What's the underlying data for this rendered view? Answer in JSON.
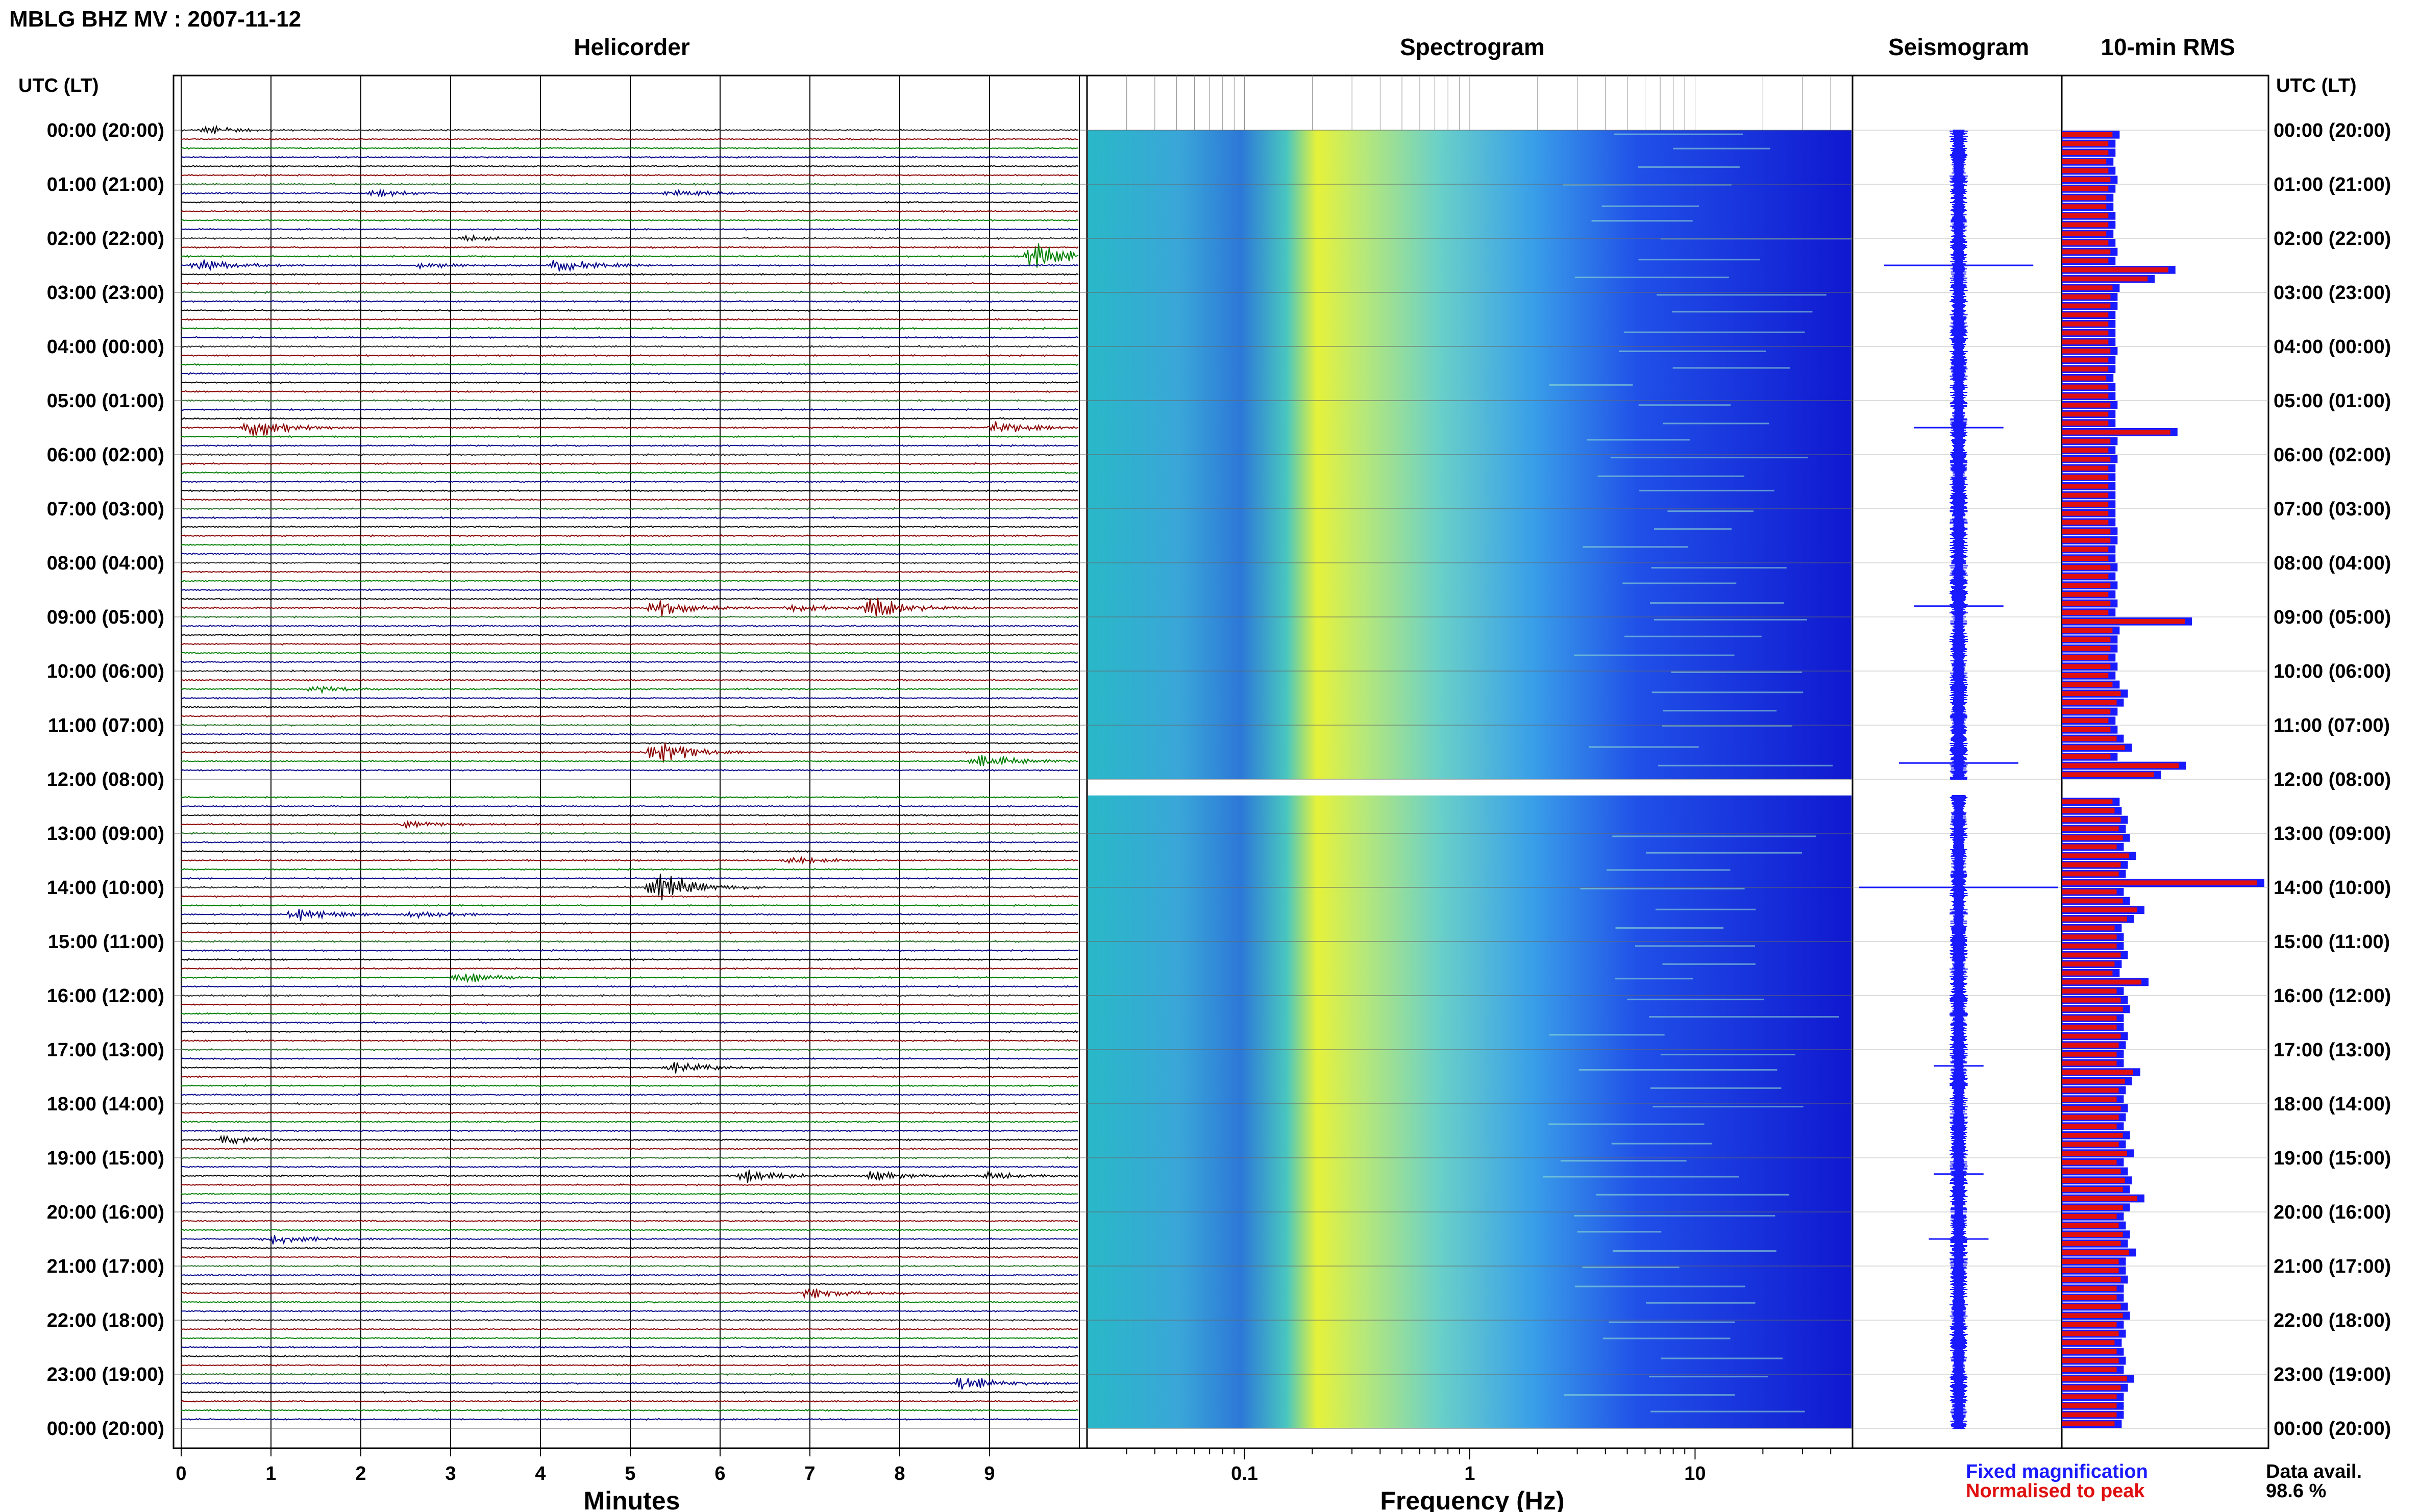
{
  "title": "MBLG BHZ MV : 2007-11-12",
  "panels": {
    "helicorder": "Helicorder",
    "spectrogram": "Spectrogram",
    "seismogram": "Seismogram",
    "rms": "10-min RMS"
  },
  "time_axis_header": "UTC (LT)",
  "time_labels": [
    "00:00 (20:00)",
    "01:00 (21:00)",
    "02:00 (22:00)",
    "03:00 (23:00)",
    "04:00 (00:00)",
    "05:00 (01:00)",
    "06:00 (02:00)",
    "07:00 (03:00)",
    "08:00 (04:00)",
    "09:00 (05:00)",
    "10:00 (06:00)",
    "11:00 (07:00)",
    "12:00 (08:00)",
    "13:00 (09:00)",
    "14:00 (10:00)",
    "15:00 (11:00)",
    "16:00 (12:00)",
    "17:00 (13:00)",
    "18:00 (14:00)",
    "19:00 (15:00)",
    "20:00 (16:00)",
    "21:00 (17:00)",
    "22:00 (18:00)",
    "23:00 (19:00)",
    "00:00 (20:00)"
  ],
  "minutes_ticks": [
    "0",
    "1",
    "2",
    "3",
    "4",
    "5",
    "6",
    "7",
    "8",
    "9"
  ],
  "minutes_label": "Minutes",
  "freq_ticks": [
    "0.1",
    "1",
    "10"
  ],
  "freq_label": "Frequency (Hz)",
  "legend": {
    "fixed": "Fixed magnification",
    "normalised": "Normalised to peak",
    "fixed_color": "#1a1aff",
    "normalised_color": "#e01010"
  },
  "data_avail_label": "Data avail.",
  "data_avail_value": "98.6 %",
  "colors": {
    "trace_cycle": [
      "#000000",
      "#8b0000",
      "#008000",
      "#00008b"
    ],
    "rms_fixed": "#1a1aff",
    "rms_norm": "#e01010"
  },
  "chart_data": {
    "type": "heatmap",
    "helicorder": {
      "xlabel": "Minutes",
      "xlim": [
        0,
        10
      ],
      "rows_per_hour": 6,
      "events": [
        {
          "hour": 0.0,
          "minute": 0.3,
          "amp": 0.6
        },
        {
          "hour": 1.1,
          "minute": 2.2,
          "amp": 0.5
        },
        {
          "hour": 1.2,
          "minute": 5.5,
          "amp": 0.5
        },
        {
          "hour": 2.0,
          "minute": 3.2,
          "amp": 0.4
        },
        {
          "hour": 2.3,
          "minute": 9.5,
          "amp": 2.5
        },
        {
          "hour": 2.5,
          "minute": 0.2,
          "amp": 1.0
        },
        {
          "hour": 2.5,
          "minute": 4.2,
          "amp": 1.2
        },
        {
          "hour": 2.5,
          "minute": 2.7,
          "amp": 0.5
        },
        {
          "hour": 5.5,
          "minute": 0.8,
          "amp": 1.8
        },
        {
          "hour": 5.5,
          "minute": 9.1,
          "amp": 1.0
        },
        {
          "hour": 8.8,
          "minute": 5.3,
          "amp": 1.6
        },
        {
          "hour": 8.8,
          "minute": 7.7,
          "amp": 1.8
        },
        {
          "hour": 8.8,
          "minute": 6.8,
          "amp": 0.6
        },
        {
          "hour": 10.3,
          "minute": 1.5,
          "amp": 0.5
        },
        {
          "hour": 11.5,
          "minute": 5.3,
          "amp": 2.0
        },
        {
          "hour": 11.7,
          "minute": 8.9,
          "amp": 1.2
        },
        {
          "hour": 12.9,
          "minute": 2.5,
          "amp": 0.6
        },
        {
          "hour": 13.5,
          "minute": 6.8,
          "amp": 0.6
        },
        {
          "hour": 14.0,
          "minute": 5.3,
          "amp": 3.0
        },
        {
          "hour": 14.5,
          "minute": 1.3,
          "amp": 1.0
        },
        {
          "hour": 14.5,
          "minute": 2.6,
          "amp": 0.6
        },
        {
          "hour": 15.7,
          "minute": 3.1,
          "amp": 1.0
        },
        {
          "hour": 17.3,
          "minute": 5.5,
          "amp": 1.0
        },
        {
          "hour": 18.7,
          "minute": 0.5,
          "amp": 0.8
        },
        {
          "hour": 19.3,
          "minute": 6.3,
          "amp": 1.0
        },
        {
          "hour": 19.3,
          "minute": 7.7,
          "amp": 0.7
        },
        {
          "hour": 19.3,
          "minute": 9.0,
          "amp": 0.6
        },
        {
          "hour": 20.5,
          "minute": 1.0,
          "amp": 0.8
        },
        {
          "hour": 21.5,
          "minute": 7.0,
          "amp": 0.8
        },
        {
          "hour": 23.2,
          "minute": 8.7,
          "amp": 1.2
        }
      ]
    },
    "spectrogram": {
      "xlabel": "Frequency (Hz)",
      "xscale": "log",
      "xlim": [
        0.02,
        50
      ],
      "hours": 24,
      "data_gap_hours": [
        [
          12.0,
          12.3
        ]
      ]
    },
    "seismogram": {
      "spikes": [
        {
          "hour": 2.5,
          "amp": 0.75
        },
        {
          "hour": 5.5,
          "amp": 0.45
        },
        {
          "hour": 8.8,
          "amp": 0.45
        },
        {
          "hour": 11.7,
          "amp": 0.6
        },
        {
          "hour": 14.0,
          "amp": 1.0
        },
        {
          "hour": 17.3,
          "amp": 0.25
        },
        {
          "hour": 19.3,
          "amp": 0.25
        },
        {
          "hour": 20.5,
          "amp": 0.3
        }
      ]
    },
    "rms": {
      "xlim": [
        0,
        1
      ],
      "values": [
        0.28,
        0.26,
        0.26,
        0.25,
        0.26,
        0.27,
        0.26,
        0.25,
        0.25,
        0.26,
        0.26,
        0.25,
        0.26,
        0.27,
        0.26,
        0.55,
        0.45,
        0.28,
        0.27,
        0.27,
        0.26,
        0.26,
        0.26,
        0.26,
        0.27,
        0.26,
        0.26,
        0.25,
        0.26,
        0.26,
        0.27,
        0.26,
        0.26,
        0.56,
        0.27,
        0.26,
        0.27,
        0.26,
        0.26,
        0.26,
        0.26,
        0.26,
        0.26,
        0.26,
        0.27,
        0.27,
        0.26,
        0.26,
        0.27,
        0.26,
        0.27,
        0.26,
        0.27,
        0.26,
        0.63,
        0.28,
        0.27,
        0.27,
        0.26,
        0.27,
        0.26,
        0.28,
        0.32,
        0.3,
        0.27,
        0.26,
        0.27,
        0.3,
        0.34,
        0.27,
        0.6,
        0.48,
        0.0,
        0.0,
        0.28,
        0.29,
        0.32,
        0.31,
        0.33,
        0.3,
        0.36,
        0.32,
        0.31,
        0.98,
        0.3,
        0.33,
        0.4,
        0.35,
        0.29,
        0.3,
        0.3,
        0.32,
        0.29,
        0.28,
        0.42,
        0.3,
        0.32,
        0.33,
        0.3,
        0.3,
        0.32,
        0.31,
        0.3,
        0.3,
        0.38,
        0.34,
        0.31,
        0.3,
        0.32,
        0.31,
        0.3,
        0.33,
        0.31,
        0.35,
        0.3,
        0.32,
        0.34,
        0.33,
        0.4,
        0.33,
        0.3,
        0.31,
        0.33,
        0.32,
        0.36,
        0.31,
        0.31,
        0.32,
        0.3,
        0.3,
        0.32,
        0.33,
        0.3,
        0.31,
        0.29,
        0.3,
        0.31,
        0.3,
        0.35,
        0.32,
        0.3,
        0.3,
        0.3,
        0.29
      ]
    }
  }
}
